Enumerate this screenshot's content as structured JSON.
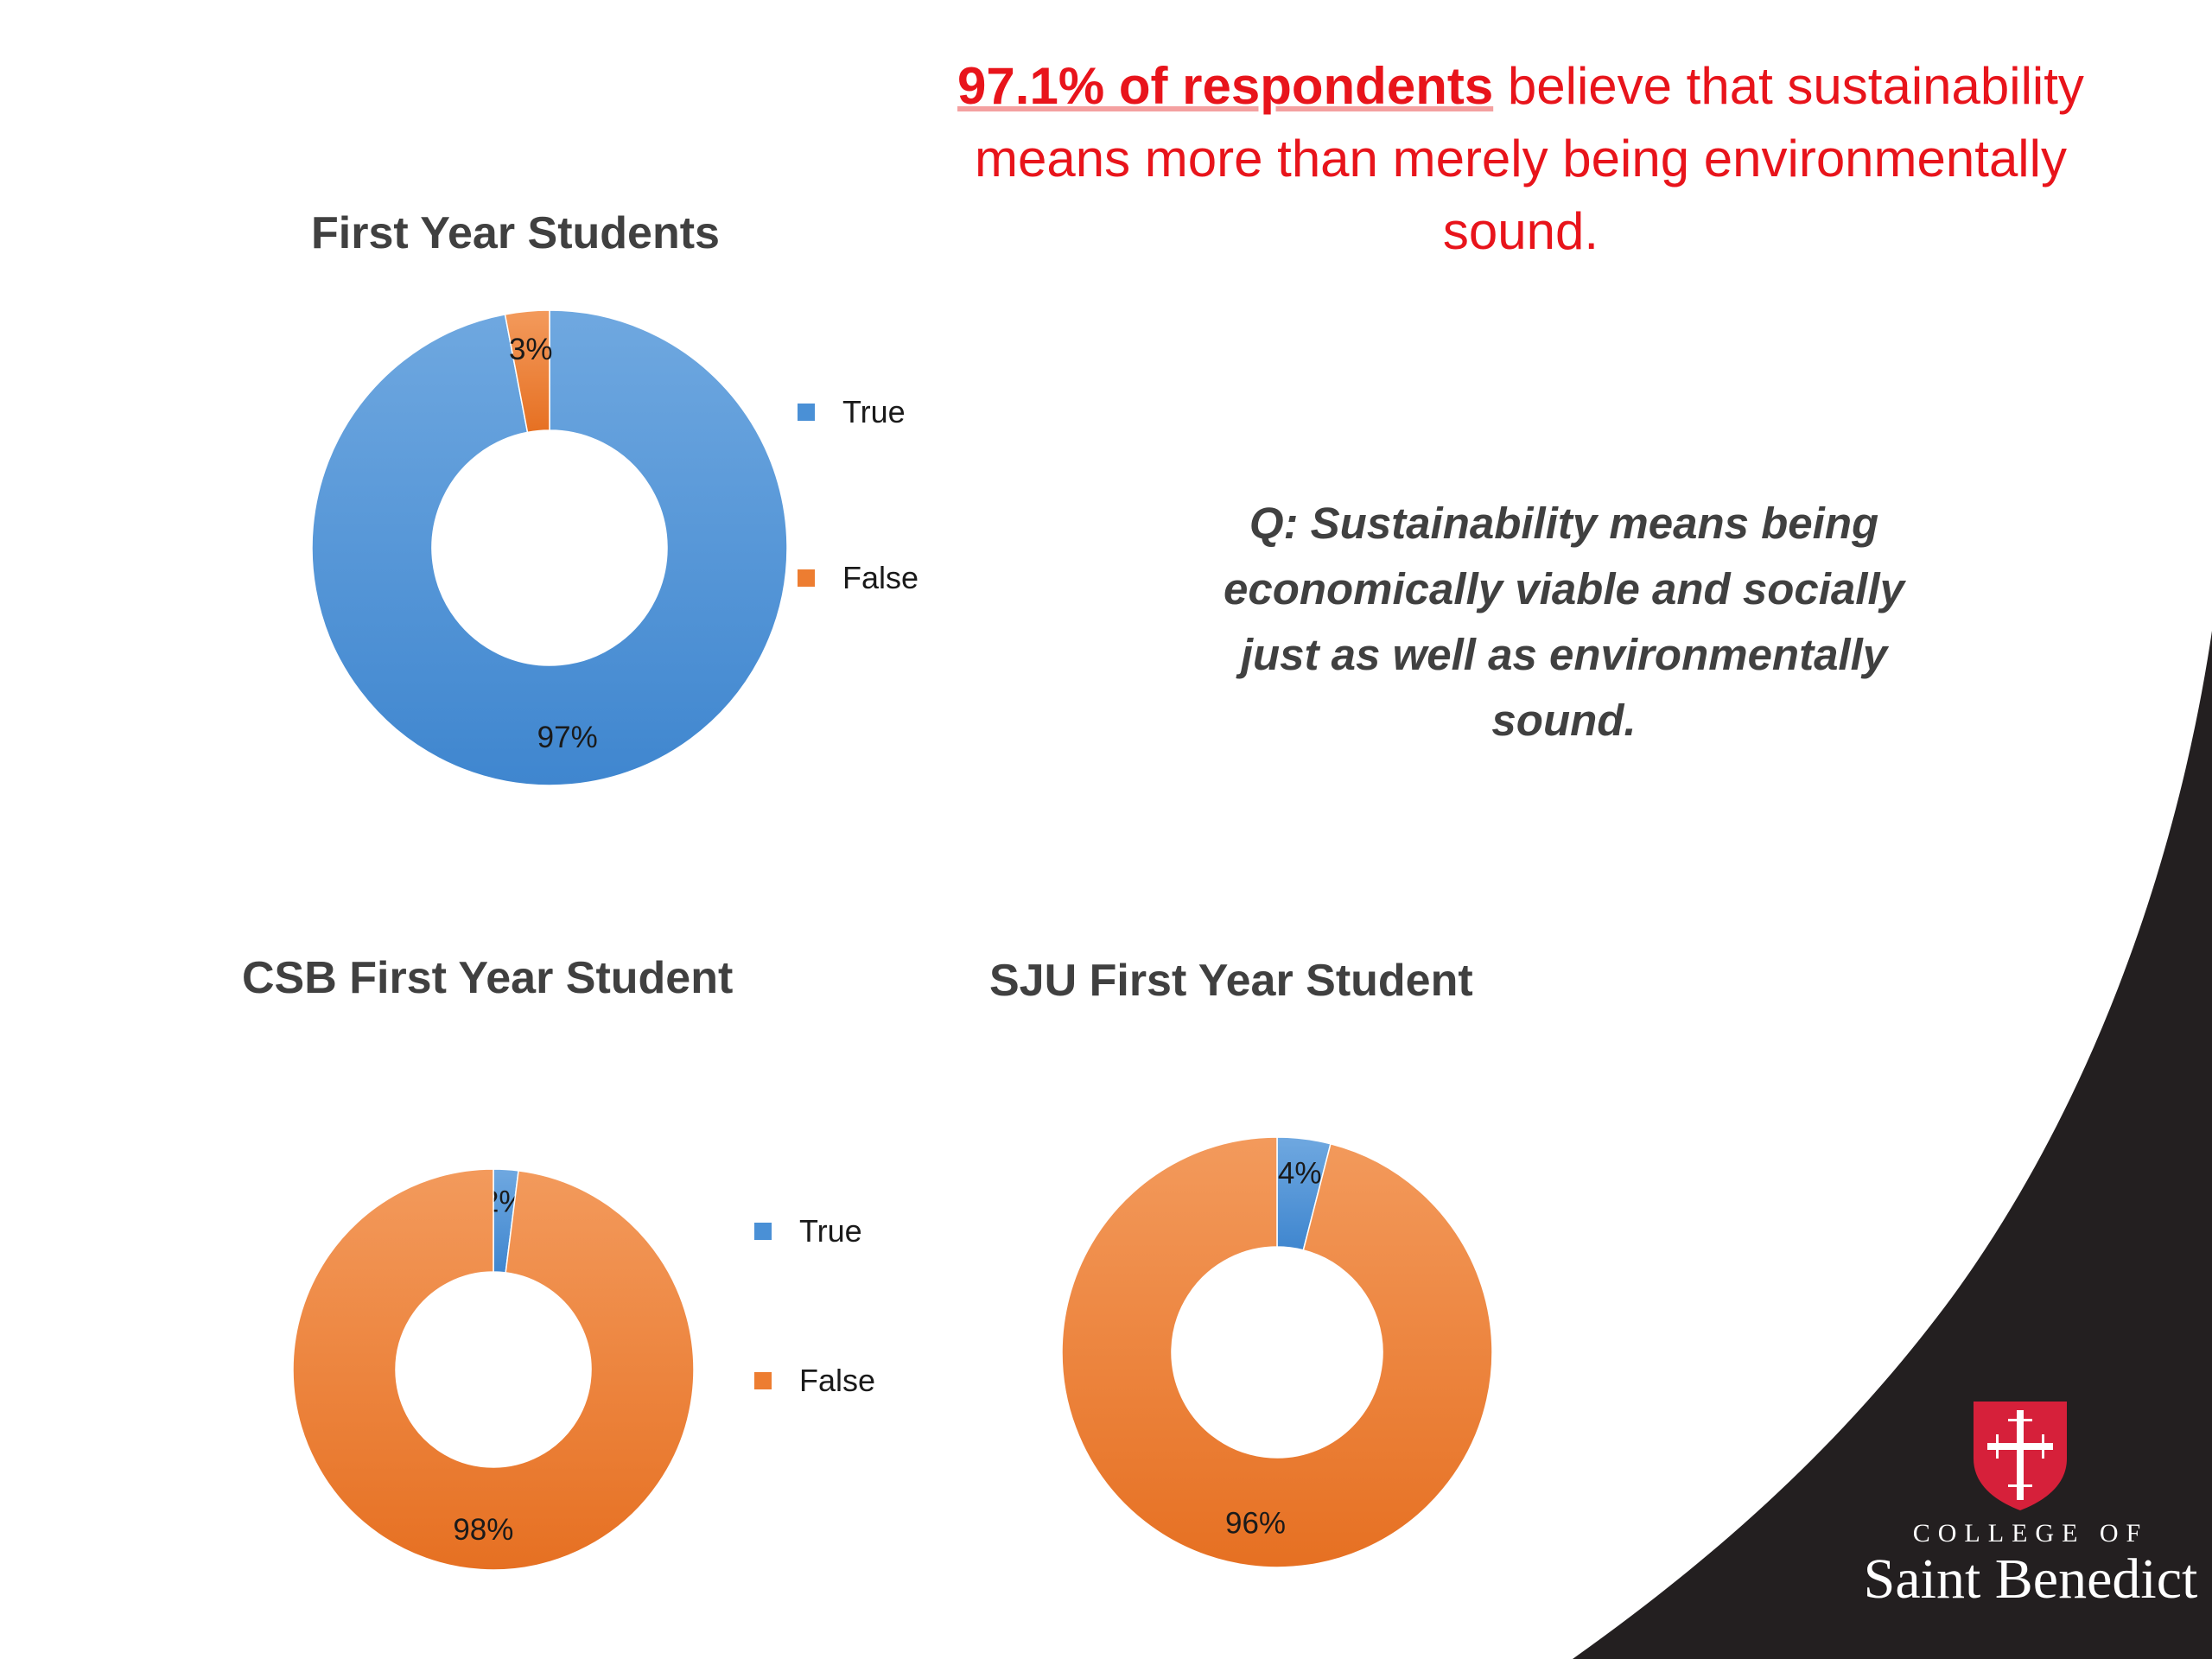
{
  "headline": {
    "bold": "97.1% of respondents",
    "rest": " believe that sustainability means more than merely being environmentally sound."
  },
  "question": "Q: Sustainability means being economically viable and socially just as well as environmentally sound.",
  "colors": {
    "true": "#4a90d6",
    "false": "#ed7d31",
    "headline": "#e8141b",
    "corner": "#231f20",
    "shield": "#d6203a"
  },
  "logo": {
    "line1": "COLLEGE OF",
    "line2": "Saint Benedict",
    "icon": "cross-shield-icon"
  },
  "chart_data": [
    {
      "type": "pie",
      "title": "First Year Students",
      "categories": [
        "True",
        "False"
      ],
      "values": [
        97,
        3
      ],
      "labels": [
        "97%",
        "3%"
      ],
      "legend": "right"
    },
    {
      "type": "pie",
      "title": "CSB First Year Student",
      "categories": [
        "True",
        "False"
      ],
      "values": [
        2,
        98
      ],
      "labels": [
        "2%",
        "98%"
      ],
      "legend": "right"
    },
    {
      "type": "pie",
      "title": "SJU First Year Student",
      "categories": [
        "True",
        "False"
      ],
      "values": [
        4,
        96
      ],
      "labels": [
        "4%",
        "96%"
      ]
    }
  ]
}
